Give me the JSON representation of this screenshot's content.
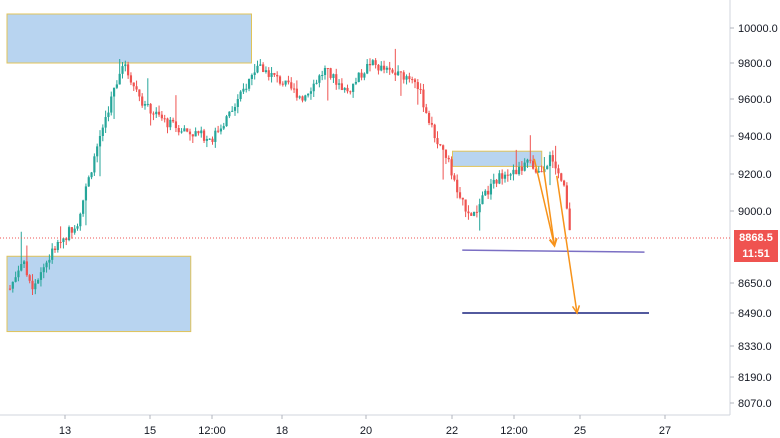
{
  "colors": {
    "up": "#26a69a",
    "down": "#ef5350",
    "zone_fill": "#b8d4f0",
    "zone_border": "#e0c35a",
    "support_line": "#7b6fc4",
    "target_line": "#1a237e",
    "arrow": "#f7931a",
    "last_price_line": "#ef5350",
    "grid": "#e0e3eb"
  },
  "price_badge": {
    "price": "8868.5",
    "countdown": "11:51"
  },
  "chart_data": {
    "type": "candlestick",
    "y_ticks": [
      "10000.0",
      "9800.0",
      "9600.0",
      "9400.0",
      "9200.0",
      "9000.0",
      "8650.0",
      "8490.0",
      "8330.0",
      "8190.0",
      "8070.0"
    ],
    "x_ticks": [
      "13",
      "15",
      "12:00",
      "18",
      "20",
      "22",
      "12:00",
      "25",
      "27"
    ],
    "last_price": 8868.5,
    "price_path": [
      [
        0,
        8620
      ],
      [
        0.5,
        8760
      ],
      [
        1,
        8640
      ],
      [
        2,
        8820
      ],
      [
        3,
        8950
      ],
      [
        4,
        9400
      ],
      [
        5,
        9800
      ],
      [
        6,
        9560
      ],
      [
        7,
        9470
      ],
      [
        8,
        9420
      ],
      [
        9,
        9390
      ],
      [
        10,
        9560
      ],
      [
        11,
        9790
      ],
      [
        12,
        9700
      ],
      [
        13,
        9610
      ],
      [
        14,
        9760
      ],
      [
        15,
        9640
      ],
      [
        16,
        9800
      ],
      [
        17,
        9740
      ],
      [
        18,
        9720
      ],
      [
        18.8,
        9420
      ],
      [
        19.5,
        9260
      ],
      [
        20,
        9050
      ],
      [
        20.6,
        8980
      ],
      [
        21.2,
        9100
      ],
      [
        22,
        9220
      ],
      [
        22.5,
        9200
      ],
      [
        23,
        9260
      ],
      [
        23.5,
        9210
      ],
      [
        24,
        9280
      ],
      [
        24.6,
        9140
      ],
      [
        24.9,
        8868.5
      ]
    ],
    "zones": [
      {
        "x": [
          0,
          10.6
        ],
        "y": [
          9800,
          10080
        ]
      },
      {
        "x": [
          0,
          7.9
        ],
        "y": [
          8400,
          8780
        ]
      },
      {
        "x": [
          19.8,
          23.5
        ],
        "y": [
          9240,
          9320
        ]
      }
    ],
    "support_level": 8810,
    "target_level": 8490,
    "projection_arrows": [
      [
        [
          23.3,
          9280
        ],
        [
          24.2,
          8830
        ]
      ],
      [
        [
          23.7,
          9240
        ],
        [
          24.2,
          8830
        ]
      ],
      [
        [
          24.3,
          9190
        ],
        [
          25.2,
          8490
        ]
      ]
    ]
  }
}
